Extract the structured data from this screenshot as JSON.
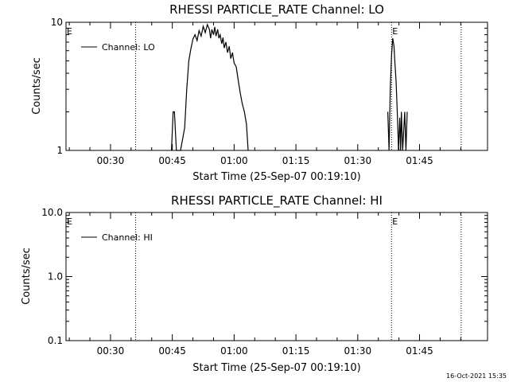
{
  "footer": {
    "timestamp": "16-Oct-2021 15:35"
  },
  "chart_data": [
    {
      "type": "line",
      "title": "RHESSI PARTICLE_RATE Channel: LO",
      "xlabel": "Start Time (25-Sep-07 00:19:10)",
      "ylabel": "Counts/sec",
      "yscale": "log",
      "xlim_minutes": [
        19.2,
        121.5
      ],
      "ylim": [
        1,
        10
      ],
      "x_ticks": [
        {
          "minutes": 30,
          "label": "00:30"
        },
        {
          "minutes": 45,
          "label": "00:45"
        },
        {
          "minutes": 60,
          "label": "01:00"
        },
        {
          "minutes": 75,
          "label": "01:15"
        },
        {
          "minutes": 90,
          "label": "01:30"
        },
        {
          "minutes": 105,
          "label": "01:45"
        }
      ],
      "y_ticks": [
        {
          "value": 1,
          "label": "1"
        },
        {
          "value": 10,
          "label": "10"
        }
      ],
      "legend": {
        "label": "Channel: LO",
        "position": "top-left"
      },
      "vlines": [
        {
          "minutes": 36.1,
          "label": ""
        },
        {
          "minutes": 98.2,
          "label": "E"
        },
        {
          "minutes": 115.1,
          "label": ""
        }
      ],
      "edge_labels": [
        {
          "position": "top-left",
          "text": "E"
        }
      ],
      "series": [
        {
          "name": "Channel: LO",
          "x": [
            44.8,
            45.2,
            45.5,
            46.0,
            46.3,
            46.6,
            46.8,
            47.0,
            48.0,
            48.5,
            49.0,
            49.5,
            50.0,
            50.5,
            51.0,
            51.5,
            52.0,
            52.5,
            53.0,
            53.5,
            54.0,
            54.3,
            54.6,
            55.0,
            55.3,
            55.6,
            56.0,
            56.3,
            56.6,
            57.0,
            57.3,
            57.6,
            58.0,
            58.4,
            58.8,
            59.2,
            59.6,
            60.0,
            60.5,
            61.0,
            61.5,
            62.0,
            62.5,
            63.0,
            63.4
          ],
          "y": [
            1,
            2,
            2,
            1,
            1,
            1,
            1,
            1,
            1.5,
            3,
            5,
            6.2,
            7.4,
            8.0,
            7.2,
            8.6,
            7.8,
            9.3,
            8.3,
            9.6,
            8.8,
            7.5,
            8.8,
            8.0,
            9.2,
            7.8,
            8.8,
            7.5,
            8.0,
            6.8,
            7.6,
            6.3,
            7.0,
            5.8,
            6.5,
            5.2,
            5.8,
            4.8,
            4.5,
            3.5,
            2.8,
            2.3,
            2.0,
            1.6,
            1
          ],
          "line_style": "solid"
        },
        {
          "name": "",
          "x": [
            97.3,
            97.6,
            97.9,
            98.2,
            98.5,
            98.8,
            99.0,
            99.3,
            99.6,
            99.9,
            100.2,
            100.4,
            100.6,
            100.9,
            101.2,
            101.4,
            101.7,
            102.0
          ],
          "y": [
            2,
            1,
            3,
            5.5,
            7.5,
            6.5,
            5,
            3.5,
            2,
            1,
            1.8,
            1,
            2,
            1,
            1.5,
            2,
            1,
            2
          ],
          "line_style": "solid"
        }
      ]
    },
    {
      "type": "line",
      "title": "RHESSI PARTICLE_RATE Channel: HI",
      "xlabel": "Start Time (25-Sep-07 00:19:10)",
      "ylabel": "Counts/sec",
      "yscale": "log",
      "xlim_minutes": [
        19.2,
        121.5
      ],
      "ylim": [
        0.1,
        10
      ],
      "x_ticks": [
        {
          "minutes": 30,
          "label": "00:30"
        },
        {
          "minutes": 45,
          "label": "00:45"
        },
        {
          "minutes": 60,
          "label": "01:00"
        },
        {
          "minutes": 75,
          "label": "01:15"
        },
        {
          "minutes": 90,
          "label": "01:30"
        },
        {
          "minutes": 105,
          "label": "01:45"
        }
      ],
      "y_ticks": [
        {
          "value": 0.1,
          "label": "0.1"
        },
        {
          "value": 1,
          "label": "1.0"
        },
        {
          "value": 10,
          "label": "10.0"
        }
      ],
      "legend": {
        "label": "Channel: HI",
        "position": "top-left"
      },
      "vlines": [
        {
          "minutes": 36.1,
          "label": ""
        },
        {
          "minutes": 98.2,
          "label": "E"
        },
        {
          "minutes": 115.1,
          "label": ""
        }
      ],
      "edge_labels": [
        {
          "position": "top-left",
          "text": "E"
        }
      ],
      "series": []
    }
  ]
}
